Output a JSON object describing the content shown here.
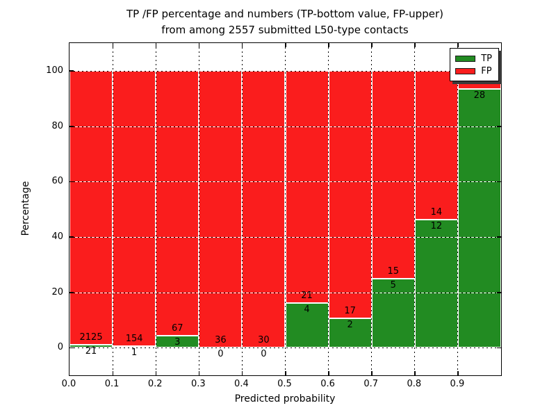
{
  "figure": {
    "title_line1": "TP /FP percentage and numbers (TP-bottom value, FP-upper)",
    "title_line2": "from among 2557 submitted L50-type contacts"
  },
  "chart_data": {
    "type": "bar",
    "subtype": "stacked-percentage",
    "title": "TP /FP percentage and numbers (TP-bottom value, FP-upper) from among 2557 submitted L50-type contacts",
    "xlabel": "Predicted probability",
    "ylabel": "Percentage",
    "x_tick_labels": [
      "0.0",
      "0.1",
      "0.2",
      "0.3",
      "0.4",
      "0.5",
      "0.6",
      "0.7",
      "0.8",
      "0.9"
    ],
    "y_ticks": [
      0,
      20,
      40,
      60,
      80,
      100
    ],
    "xlim": [
      0.0,
      1.0
    ],
    "ylim": [
      -10,
      110
    ],
    "grid": true,
    "legend_position": "upper right",
    "legend": [
      {
        "label": "TP",
        "color": "#228b22"
      },
      {
        "label": "FP",
        "color": "#fa1d1d"
      }
    ],
    "bins": [
      {
        "bin": "0.0-0.1",
        "tp": 21,
        "fp": 2125,
        "tp_pct": 0.98
      },
      {
        "bin": "0.1-0.2",
        "tp": 1,
        "fp": 154,
        "tp_pct": 0.65
      },
      {
        "bin": "0.2-0.3",
        "tp": 3,
        "fp": 67,
        "tp_pct": 4.29
      },
      {
        "bin": "0.3-0.4",
        "tp": 0,
        "fp": 36,
        "tp_pct": 0
      },
      {
        "bin": "0.4-0.5",
        "tp": 0,
        "fp": 30,
        "tp_pct": 0
      },
      {
        "bin": "0.5-0.6",
        "tp": 4,
        "fp": 21,
        "tp_pct": 16.0
      },
      {
        "bin": "0.6-0.7",
        "tp": 2,
        "fp": 17,
        "tp_pct": 10.53
      },
      {
        "bin": "0.7-0.8",
        "tp": 5,
        "fp": 15,
        "tp_pct": 25.0
      },
      {
        "bin": "0.8-0.9",
        "tp": 12,
        "fp": 14,
        "tp_pct": 46.15
      },
      {
        "bin": "0.9-1.0",
        "tp": 28,
        "fp": 2,
        "tp_pct": 93.33
      }
    ]
  }
}
